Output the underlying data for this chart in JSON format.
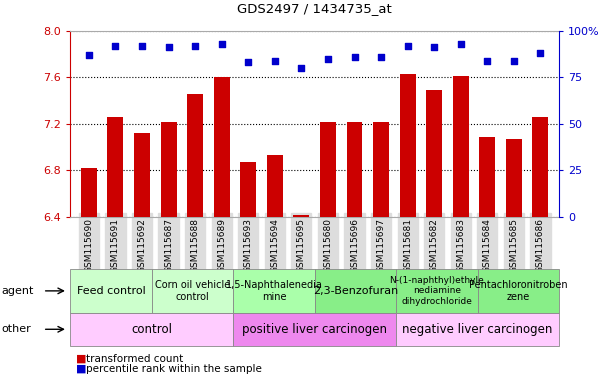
{
  "title": "GDS2497 / 1434735_at",
  "samples": [
    "GSM115690",
    "GSM115691",
    "GSM115692",
    "GSM115687",
    "GSM115688",
    "GSM115689",
    "GSM115693",
    "GSM115694",
    "GSM115695",
    "GSM115680",
    "GSM115696",
    "GSM115697",
    "GSM115681",
    "GSM115682",
    "GSM115683",
    "GSM115684",
    "GSM115685",
    "GSM115686"
  ],
  "transformed_count": [
    6.82,
    7.26,
    7.12,
    7.22,
    7.46,
    7.6,
    6.87,
    6.93,
    6.42,
    7.22,
    7.22,
    7.22,
    7.63,
    7.49,
    7.61,
    7.09,
    7.07,
    7.26
  ],
  "percentile_rank": [
    87,
    92,
    92,
    91,
    92,
    93,
    83,
    84,
    80,
    85,
    86,
    86,
    92,
    91,
    93,
    84,
    84,
    88
  ],
  "ylim_left": [
    6.4,
    8.0
  ],
  "ylim_right": [
    0,
    100
  ],
  "yticks_left": [
    6.4,
    6.8,
    7.2,
    7.6,
    8.0
  ],
  "yticks_right": [
    0,
    25,
    50,
    75,
    100
  ],
  "ytick_labels_right": [
    "0",
    "25",
    "50",
    "75",
    "100%"
  ],
  "bar_color": "#cc0000",
  "dot_color": "#0000cc",
  "agent_groups": [
    {
      "label": "Feed control",
      "start": 0,
      "end": 3,
      "color": "#ccffcc",
      "fontsize": 8
    },
    {
      "label": "Corn oil vehicle\ncontrol",
      "start": 3,
      "end": 6,
      "color": "#ccffcc",
      "fontsize": 7
    },
    {
      "label": "1,5-Naphthalenedia\nmine",
      "start": 6,
      "end": 9,
      "color": "#aaffaa",
      "fontsize": 7
    },
    {
      "label": "2,3-Benzofuran",
      "start": 9,
      "end": 12,
      "color": "#88ee88",
      "fontsize": 8
    },
    {
      "label": "N-(1-naphthyl)ethyle\nnediamine\ndihydrochloride",
      "start": 12,
      "end": 15,
      "color": "#88ee88",
      "fontsize": 6.5
    },
    {
      "label": "Pentachloronitroben\nzene",
      "start": 15,
      "end": 18,
      "color": "#88ee88",
      "fontsize": 7
    }
  ],
  "other_groups": [
    {
      "label": "control",
      "start": 0,
      "end": 6,
      "color": "#ffccff"
    },
    {
      "label": "positive liver carcinogen",
      "start": 6,
      "end": 12,
      "color": "#ee88ee"
    },
    {
      "label": "negative liver carcinogen",
      "start": 12,
      "end": 18,
      "color": "#ffccff"
    }
  ],
  "legend_bar_label": "transformed count",
  "legend_dot_label": "percentile rank within the sample",
  "left_axis_color": "#cc0000",
  "right_axis_color": "#0000cc",
  "background_color": "#ffffff",
  "tick_label_bg": "#dddddd",
  "bar_width": 0.6
}
